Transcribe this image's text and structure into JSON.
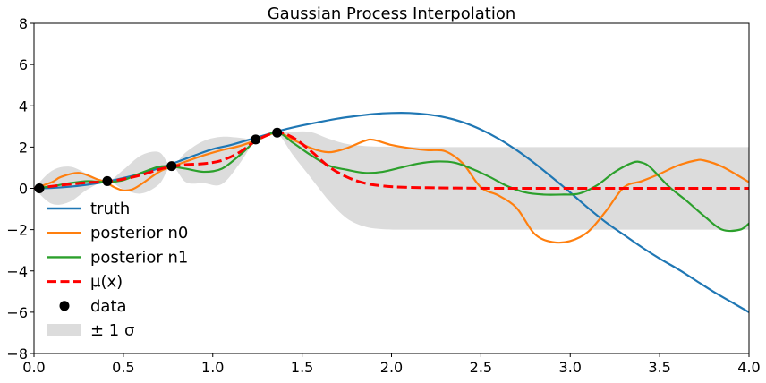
{
  "chart_data": {
    "type": "line",
    "title": "Gaussian Process Interpolation",
    "xlabel": "",
    "ylabel": "",
    "xlim": [
      0.0,
      4.0
    ],
    "ylim": [
      -8,
      8
    ],
    "grid": false,
    "legend_placement": "lower-left",
    "x_ticks": [
      "0.0",
      "0.5",
      "1.0",
      "1.5",
      "2.0",
      "2.5",
      "3.0",
      "3.5",
      "4.0"
    ],
    "y_ticks": [
      "−8",
      "−6",
      "−4",
      "−2",
      "0",
      "2",
      "4",
      "6",
      "8"
    ],
    "series": [
      {
        "name": "truth",
        "color": "#1f77b4",
        "style": "solid",
        "x": [
          0.0,
          0.1,
          0.2,
          0.3,
          0.4,
          0.5,
          0.6,
          0.7,
          0.8,
          0.9,
          1.0,
          1.1,
          1.2,
          1.3,
          1.4,
          1.5,
          1.6,
          1.7,
          1.8,
          1.9,
          2.0,
          2.1,
          2.2,
          2.3,
          2.4,
          2.5,
          2.6,
          2.7,
          2.8,
          2.9,
          3.0,
          3.1,
          3.2,
          3.3,
          3.4,
          3.5,
          3.6,
          3.7,
          3.8,
          3.9,
          4.0
        ],
        "y": [
          0.0,
          0.02,
          0.08,
          0.18,
          0.32,
          0.5,
          0.72,
          0.98,
          1.28,
          1.6,
          1.9,
          2.1,
          2.35,
          2.6,
          2.85,
          3.05,
          3.22,
          3.38,
          3.5,
          3.6,
          3.65,
          3.65,
          3.58,
          3.44,
          3.2,
          2.85,
          2.4,
          1.85,
          1.22,
          0.52,
          -0.2,
          -0.95,
          -1.65,
          -2.25,
          -2.85,
          -3.4,
          -3.9,
          -4.45,
          -5.0,
          -5.5,
          -6.0
        ]
      },
      {
        "name": "posterior n0",
        "color": "#ff7f0e",
        "style": "solid",
        "x": [
          0.0,
          0.1,
          0.15,
          0.25,
          0.35,
          0.4,
          0.45,
          0.5,
          0.55,
          0.6,
          0.7,
          0.77,
          0.85,
          0.95,
          1.05,
          1.15,
          1.25,
          1.36,
          1.45,
          1.55,
          1.65,
          1.75,
          1.85,
          1.9,
          2.0,
          2.1,
          2.2,
          2.3,
          2.4,
          2.5,
          2.6,
          2.7,
          2.8,
          2.9,
          3.0,
          3.1,
          3.2,
          3.3,
          3.4,
          3.5,
          3.6,
          3.7,
          3.75,
          3.85,
          4.0
        ],
        "y": [
          0.0,
          0.3,
          0.55,
          0.75,
          0.45,
          0.3,
          0.05,
          -0.1,
          -0.05,
          0.2,
          0.8,
          1.05,
          1.3,
          1.6,
          1.85,
          2.05,
          2.35,
          2.7,
          2.35,
          1.95,
          1.75,
          1.95,
          2.3,
          2.35,
          2.1,
          1.95,
          1.85,
          1.8,
          1.2,
          0.05,
          -0.35,
          -0.95,
          -2.2,
          -2.6,
          -2.55,
          -2.1,
          -1.1,
          0.05,
          0.35,
          0.7,
          1.1,
          1.35,
          1.35,
          1.05,
          0.3
        ]
      },
      {
        "name": "posterior n1",
        "color": "#2ca02c",
        "style": "solid",
        "x": [
          0.0,
          0.1,
          0.2,
          0.3,
          0.4,
          0.5,
          0.6,
          0.7,
          0.77,
          0.85,
          0.95,
          1.05,
          1.15,
          1.25,
          1.36,
          1.45,
          1.55,
          1.65,
          1.75,
          1.85,
          1.95,
          2.05,
          2.15,
          2.25,
          2.35,
          2.45,
          2.55,
          2.65,
          2.75,
          2.85,
          2.95,
          3.05,
          3.15,
          3.25,
          3.35,
          3.4,
          3.45,
          3.55,
          3.65,
          3.75,
          3.85,
          3.95,
          4.0
        ],
        "y": [
          0.0,
          0.1,
          0.25,
          0.35,
          0.3,
          0.4,
          0.75,
          1.05,
          1.05,
          0.95,
          0.8,
          0.95,
          1.6,
          2.35,
          2.7,
          2.2,
          1.6,
          1.1,
          0.9,
          0.75,
          0.8,
          1.0,
          1.2,
          1.3,
          1.25,
          0.95,
          0.55,
          0.1,
          -0.2,
          -0.3,
          -0.3,
          -0.25,
          0.15,
          0.8,
          1.25,
          1.25,
          1.0,
          0.1,
          -0.6,
          -1.35,
          -2.0,
          -2.0,
          -1.7
        ]
      },
      {
        "name": "μ(x)",
        "color": "#ff0000",
        "style": "dashed",
        "x": [
          0.0,
          0.1,
          0.2,
          0.3,
          0.4,
          0.5,
          0.6,
          0.7,
          0.77,
          0.85,
          0.95,
          1.05,
          1.15,
          1.25,
          1.36,
          1.45,
          1.55,
          1.65,
          1.75,
          1.85,
          1.95,
          2.05,
          2.2,
          2.4,
          2.6,
          3.0,
          3.5,
          4.0
        ],
        "y": [
          0.0,
          0.1,
          0.2,
          0.28,
          0.32,
          0.45,
          0.65,
          0.92,
          1.05,
          1.15,
          1.2,
          1.35,
          1.75,
          2.35,
          2.7,
          2.45,
          1.8,
          1.05,
          0.55,
          0.25,
          0.12,
          0.06,
          0.03,
          0.01,
          0.0,
          0.0,
          0.0,
          0.0
        ]
      }
    ],
    "data_points": {
      "name": "data",
      "color": "#000000",
      "x": [
        0.03,
        0.41,
        0.77,
        1.24,
        1.36
      ],
      "y": [
        0.0,
        0.35,
        1.08,
        2.37,
        2.7
      ]
    },
    "band": {
      "name": "± 1 σ",
      "color": "#dcdcdc",
      "x": [
        0.0,
        0.1,
        0.2,
        0.3,
        0.41,
        0.5,
        0.6,
        0.7,
        0.77,
        0.85,
        0.95,
        1.05,
        1.15,
        1.24,
        1.3,
        1.36,
        1.45,
        1.55,
        1.65,
        1.75,
        1.85,
        1.95,
        2.05,
        2.2,
        2.4,
        2.6,
        3.0,
        3.5,
        4.0
      ],
      "upper": [
        0.0,
        0.85,
        1.05,
        0.7,
        0.35,
        0.9,
        1.6,
        1.75,
        1.08,
        1.75,
        2.3,
        2.5,
        2.45,
        2.37,
        2.6,
        2.7,
        2.75,
        2.72,
        2.4,
        2.15,
        2.05,
        2.02,
        2.01,
        2.0,
        2.0,
        2.0,
        2.0,
        2.0,
        2.0
      ],
      "lower": [
        0.0,
        -0.75,
        -0.65,
        -0.05,
        0.35,
        -0.05,
        -0.25,
        0.2,
        1.08,
        0.3,
        0.25,
        0.2,
        1.2,
        2.37,
        2.6,
        2.7,
        1.6,
        0.5,
        -0.6,
        -1.45,
        -1.85,
        -1.98,
        -2.0,
        -2.0,
        -2.0,
        -2.0,
        -2.0,
        -2.0,
        -2.0
      ]
    },
    "legend": [
      "truth",
      "posterior n0",
      "posterior n1",
      "μ(x)",
      "data",
      "± 1 σ"
    ]
  }
}
